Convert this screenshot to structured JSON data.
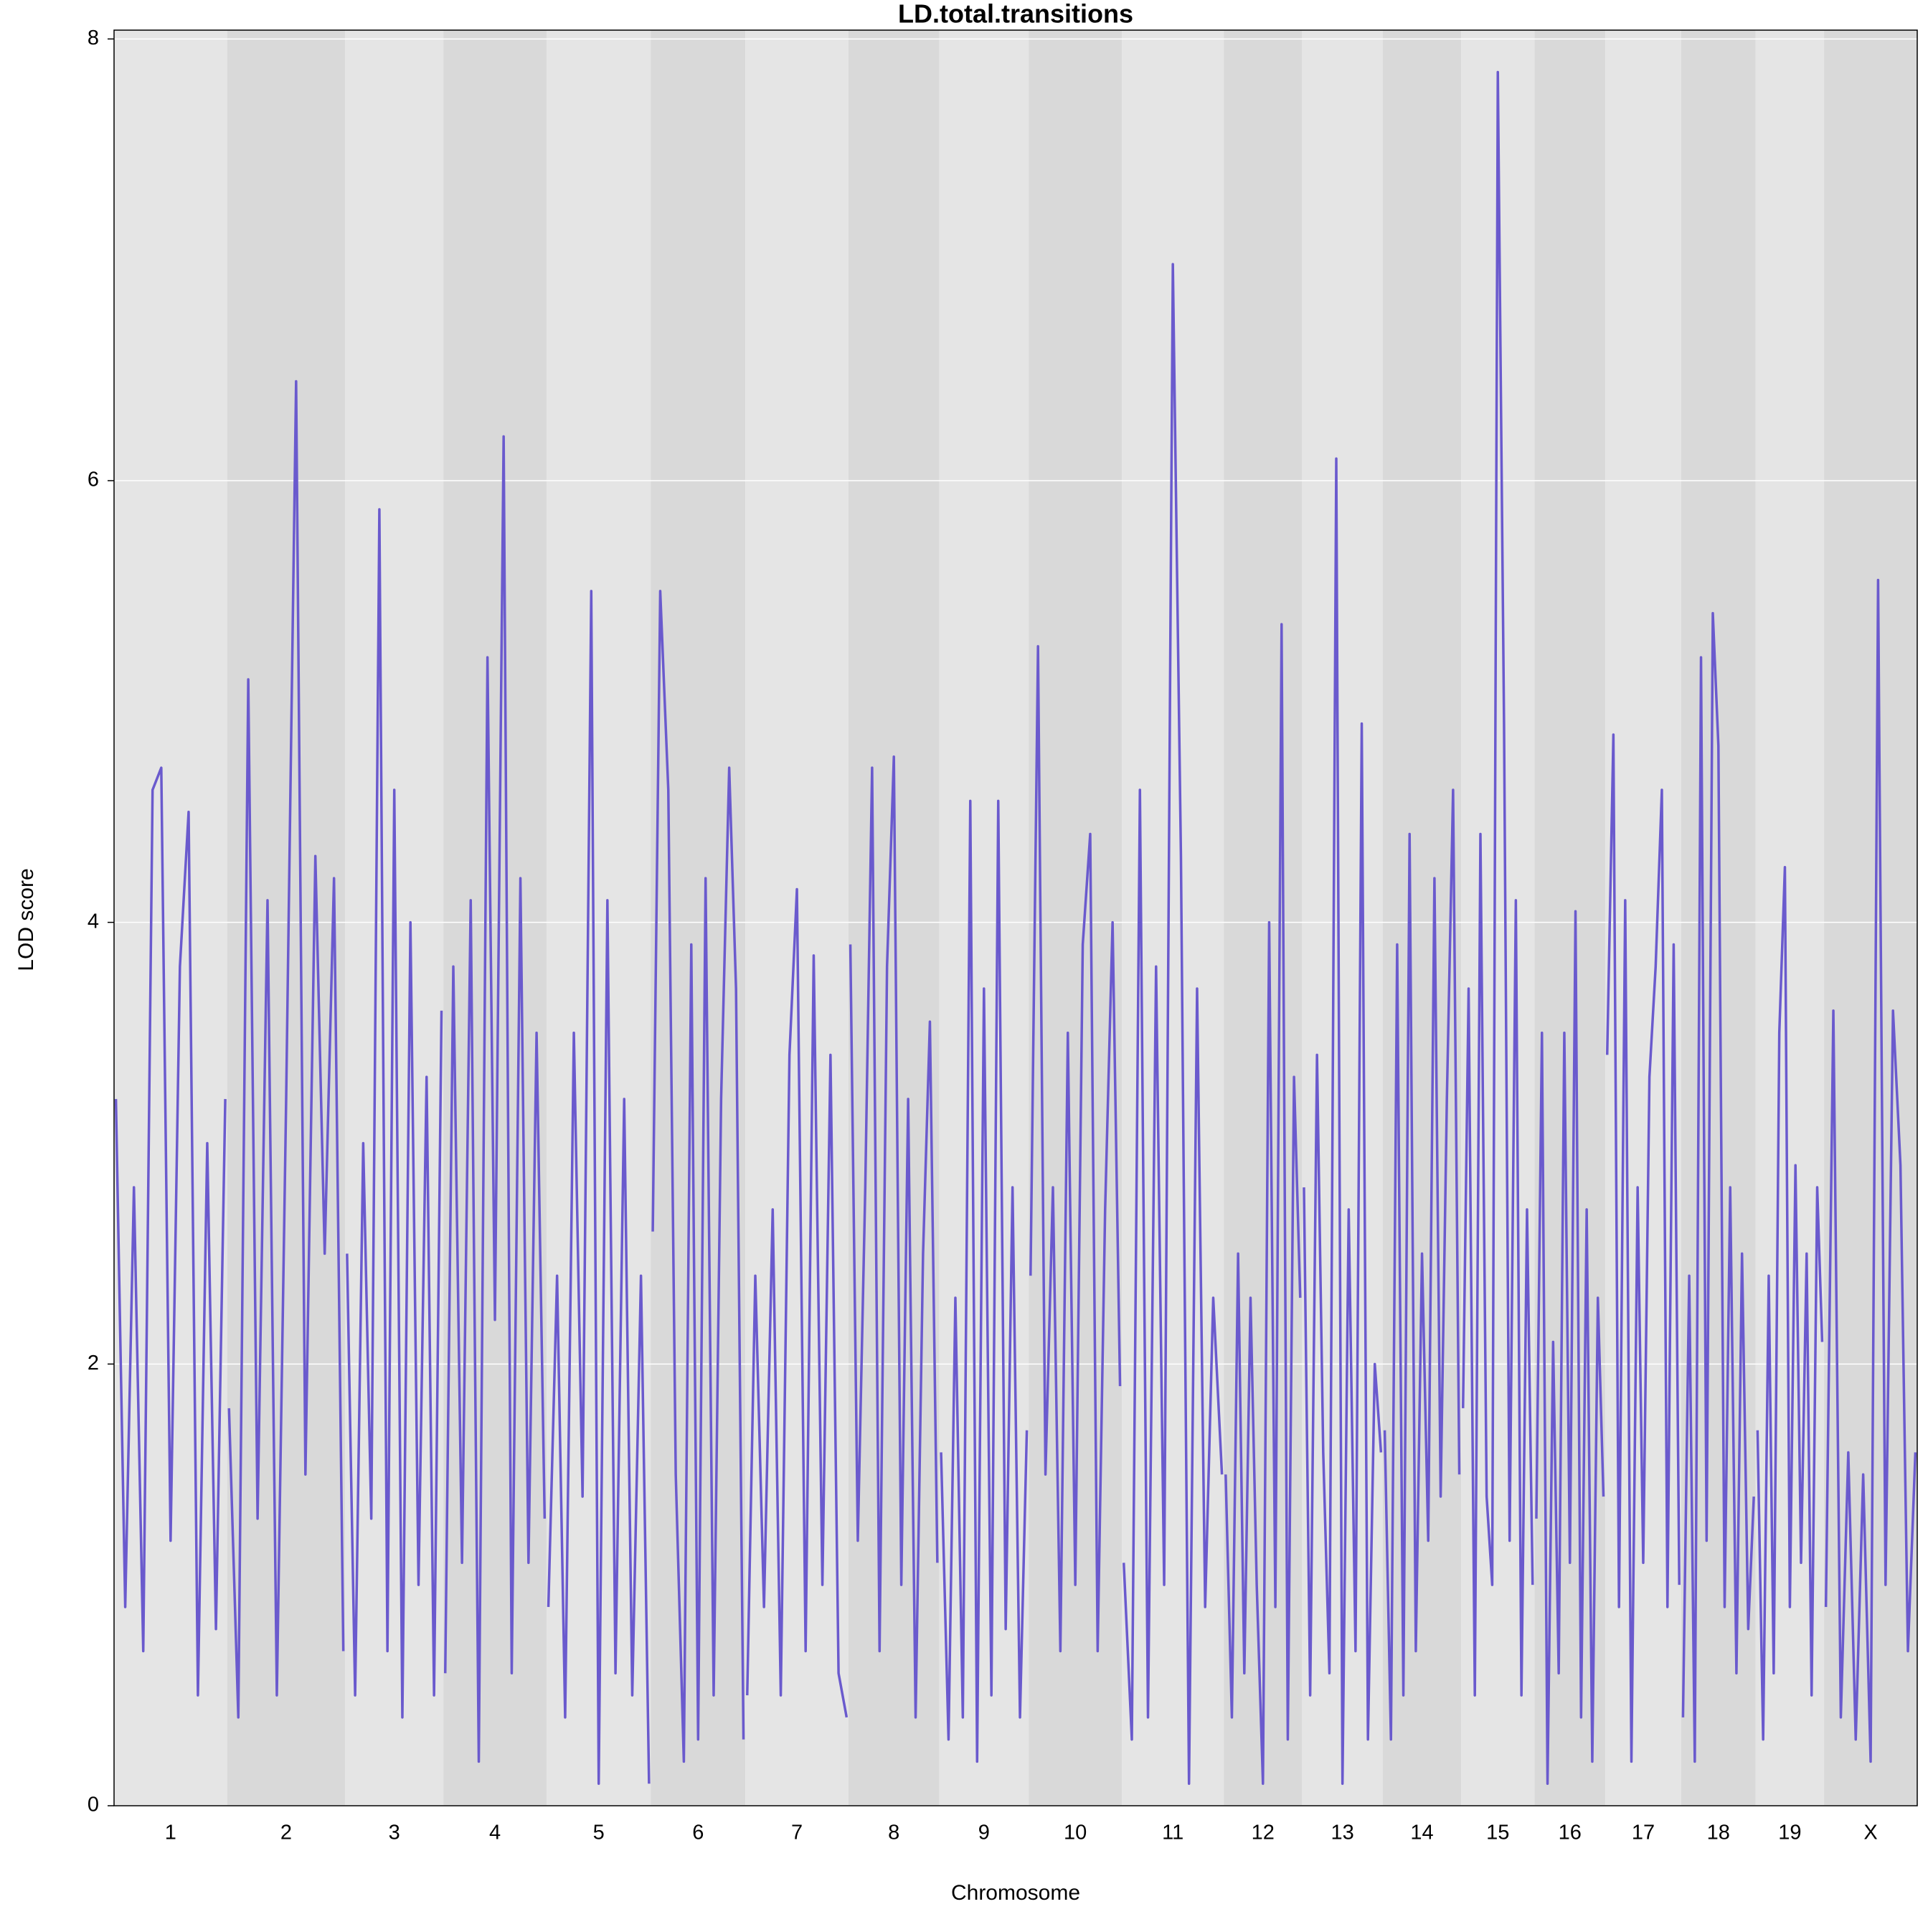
{
  "chart_data": {
    "type": "line",
    "title": "LD.total.transitions",
    "xlabel": "Chromosome",
    "ylabel": "LOD score",
    "ylim": [
      0,
      8.04
    ],
    "yticks": [
      0,
      2,
      4,
      6,
      8
    ],
    "grid": true,
    "color": "#6a5acd",
    "band_colors": [
      "#e5e5e5",
      "#d9d9d9"
    ],
    "chromosomes": [
      {
        "name": "1",
        "x": [
          3,
          18,
          32,
          47,
          62,
          76,
          91,
          106,
          120,
          135,
          150,
          164,
          179
        ],
        "values": [
          3.2,
          0.9,
          2.8,
          0.7,
          4.6,
          4.7,
          1.2,
          3.8,
          4.5,
          0.5,
          3.0,
          0.8,
          3.2
        ]
      },
      {
        "name": "2",
        "x": [
          3,
          18,
          34,
          49,
          65,
          80,
          95,
          111,
          126,
          142,
          157,
          172,
          187
        ],
        "values": [
          1.8,
          0.4,
          5.1,
          1.3,
          4.1,
          0.5,
          3.2,
          6.45,
          1.5,
          4.3,
          2.5,
          4.2,
          0.7
        ]
      },
      {
        "name": "3",
        "x": [
          3,
          16,
          29,
          42,
          55,
          68,
          79,
          92,
          105,
          118,
          131,
          143,
          155
        ],
        "values": [
          2.5,
          0.5,
          3.0,
          1.3,
          5.87,
          0.7,
          4.6,
          0.4,
          4.0,
          1.0,
          3.3,
          0.5,
          3.6
        ]
      },
      {
        "name": "4",
        "x": [
          3,
          16,
          30,
          44,
          57,
          71,
          83,
          97,
          110,
          124,
          137,
          150,
          163
        ],
        "values": [
          0.6,
          3.8,
          1.1,
          4.1,
          0.2,
          5.2,
          2.2,
          6.2,
          0.6,
          4.2,
          1.1,
          3.5,
          1.3
        ]
      },
      {
        "name": "5",
        "x": [
          3,
          17,
          30,
          44,
          58,
          72,
          84,
          98,
          111,
          125,
          138,
          152,
          165
        ],
        "values": [
          0.9,
          2.4,
          0.4,
          3.5,
          1.4,
          5.5,
          0.1,
          4.1,
          0.6,
          3.2,
          0.5,
          2.4,
          0.1
        ]
      },
      {
        "name": "6",
        "x": [
          3,
          15,
          28,
          40,
          53,
          65,
          76,
          88,
          101,
          113,
          126,
          137,
          149
        ],
        "values": [
          2.6,
          5.5,
          4.6,
          1.5,
          0.2,
          3.9,
          0.3,
          4.2,
          0.5,
          3.2,
          4.7,
          3.7,
          0.3
        ]
      },
      {
        "name": "7",
        "x": [
          3,
          16,
          30,
          44,
          57,
          71,
          83,
          97,
          110,
          124,
          137,
          150,
          163
        ],
        "values": [
          0.5,
          2.4,
          0.9,
          2.7,
          0.5,
          3.4,
          4.15,
          0.7,
          3.85,
          1.0,
          3.4,
          0.6,
          0.4
        ]
      },
      {
        "name": "8",
        "x": [
          3,
          15,
          27,
          38,
          50,
          62,
          73,
          85,
          96,
          108,
          120,
          131,
          143
        ],
        "values": [
          3.9,
          1.2,
          2.8,
          4.7,
          0.7,
          3.8,
          4.75,
          1.0,
          3.2,
          0.4,
          2.5,
          3.55,
          1.1
        ]
      },
      {
        "name": "9",
        "x": [
          3,
          15,
          26,
          38,
          50,
          61,
          72,
          84,
          95,
          107,
          118,
          130,
          141
        ],
        "values": [
          1.6,
          0.3,
          2.3,
          0.4,
          4.55,
          0.2,
          3.7,
          0.5,
          4.55,
          0.8,
          2.8,
          0.4,
          1.7
        ]
      },
      {
        "name": "10",
        "x": [
          3,
          15,
          27,
          39,
          51,
          63,
          75,
          87,
          99,
          111,
          123,
          135,
          147
        ],
        "values": [
          2.4,
          5.25,
          1.5,
          2.8,
          0.7,
          3.5,
          1.0,
          3.9,
          4.4,
          0.7,
          2.7,
          4.0,
          1.9
        ]
      },
      {
        "name": "11",
        "x": [
          3,
          16,
          29,
          42,
          55,
          68,
          82,
          95,
          108,
          121,
          134,
          147,
          161
        ],
        "values": [
          1.1,
          0.3,
          4.6,
          0.4,
          3.8,
          1.0,
          6.98,
          4.3,
          0.1,
          3.7,
          0.9,
          2.3,
          1.5
        ]
      },
      {
        "name": "12",
        "x": [
          3,
          13,
          23,
          33,
          43,
          53,
          63,
          73,
          83,
          93,
          103,
          113,
          123
        ],
        "values": [
          1.5,
          0.4,
          2.5,
          0.6,
          2.3,
          1.0,
          0.1,
          4.0,
          0.9,
          5.35,
          0.3,
          3.3,
          2.3
        ]
      },
      {
        "name": "13",
        "x": [
          3,
          13,
          24,
          34,
          44,
          55,
          65,
          75,
          86,
          96,
          106,
          117,
          127
        ],
        "values": [
          2.8,
          0.5,
          3.4,
          1.6,
          0.6,
          6.1,
          0.1,
          2.7,
          0.7,
          4.9,
          0.3,
          2.0,
          1.6
        ]
      },
      {
        "name": "14",
        "x": [
          3,
          13,
          23,
          33,
          43,
          53,
          63,
          73,
          83,
          93,
          103,
          113,
          123
        ],
        "values": [
          1.7,
          0.3,
          3.9,
          0.5,
          4.4,
          0.7,
          2.5,
          1.2,
          4.2,
          1.4,
          3.2,
          4.6,
          1.5
        ]
      },
      {
        "name": "15",
        "x": [
          3,
          12,
          22,
          31,
          41,
          50,
          59,
          69,
          78,
          88,
          97,
          106,
          115
        ],
        "values": [
          1.8,
          3.7,
          0.5,
          4.4,
          1.4,
          1.0,
          7.85,
          4.9,
          1.2,
          4.1,
          0.5,
          2.7,
          1.0
        ]
      },
      {
        "name": "16",
        "x": [
          3,
          12,
          21,
          30,
          39,
          48,
          57,
          66,
          75,
          84,
          93,
          102,
          111
        ],
        "values": [
          1.3,
          3.5,
          0.1,
          2.1,
          0.6,
          3.5,
          1.1,
          4.05,
          0.4,
          2.7,
          0.2,
          2.3,
          1.4
        ]
      },
      {
        "name": "17",
        "x": [
          3,
          13,
          22,
          32,
          42,
          52,
          61,
          71,
          81,
          91,
          100,
          110,
          119
        ],
        "values": [
          3.4,
          4.85,
          0.9,
          4.1,
          0.2,
          2.8,
          1.1,
          3.3,
          3.8,
          4.6,
          0.9,
          3.9,
          1.0
        ]
      },
      {
        "name": "18",
        "x": [
          3,
          13,
          22,
          32,
          41,
          51,
          60,
          70,
          79,
          89,
          98,
          108,
          117
        ],
        "values": [
          0.4,
          2.4,
          0.2,
          5.2,
          1.2,
          5.4,
          4.8,
          0.9,
          2.8,
          0.6,
          2.5,
          0.8,
          1.4
        ]
      },
      {
        "name": "19",
        "x": [
          3,
          12,
          21,
          29,
          38,
          47,
          55,
          64,
          73,
          82,
          90,
          99,
          107
        ],
        "values": [
          1.7,
          0.3,
          2.4,
          0.6,
          3.5,
          4.25,
          0.9,
          2.9,
          1.1,
          2.5,
          0.5,
          2.8,
          2.1
        ]
      },
      {
        "name": "X",
        "x": [
          3,
          15,
          27,
          39,
          51,
          63,
          75,
          87,
          99,
          111,
          123,
          135,
          147
        ],
        "values": [
          0.9,
          3.6,
          0.4,
          1.6,
          0.3,
          1.5,
          0.2,
          5.55,
          1.0,
          3.6,
          2.9,
          0.7,
          1.6
        ]
      }
    ]
  }
}
